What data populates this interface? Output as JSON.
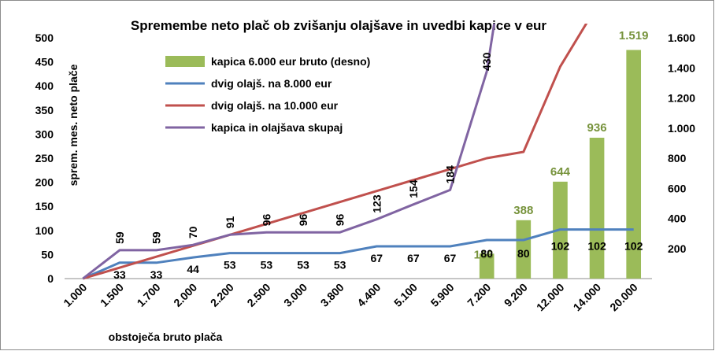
{
  "chart_data": {
    "type": "bar+line",
    "title": "Spremembe neto plač ob zvišanju olajšave in uvedbi kapice v eur",
    "xlabel": "obstoječa bruto plača",
    "ylabel": "sprem. mes. neto plače",
    "categories": [
      "1.000",
      "1.500",
      "1.700",
      "2.000",
      "2.200",
      "2.500",
      "3.000",
      "3.800",
      "4.400",
      "5.100",
      "5.900",
      "7.200",
      "9.200",
      "12.000",
      "14.000",
      "20.000"
    ],
    "y_left": {
      "min": 0,
      "max": 500,
      "ticks": [
        0,
        50,
        100,
        150,
        200,
        250,
        300,
        350,
        400,
        450,
        500
      ],
      "tick_labels": [
        "0",
        "50",
        "100",
        "150",
        "200",
        "250",
        "300",
        "350",
        "400",
        "450",
        "500"
      ]
    },
    "y_right": {
      "min": 0,
      "max": 1600,
      "ticks": [
        200,
        400,
        600,
        800,
        1000,
        1200,
        1400,
        1600
      ],
      "tick_labels": [
        "200",
        "400",
        "600",
        "800",
        "1.000",
        "1.200",
        "1.400",
        "1.600"
      ]
    },
    "grid": false,
    "legend_position": "top-left",
    "colors": {
      "bar": "#9BBB59",
      "line_blue": "#4F81BD",
      "line_red": "#C0504D",
      "line_purple": "#8064A2",
      "bar_label": "#77933C"
    },
    "series": [
      {
        "name": "kapica 6.000 eur bruto (desno)",
        "kind": "bar",
        "axis": "right",
        "values": [
          null,
          null,
          null,
          null,
          null,
          null,
          null,
          null,
          null,
          null,
          null,
          166,
          388,
          644,
          936,
          1519
        ],
        "labels": [
          "",
          "",
          "",
          "",
          "",
          "",
          "",
          "",
          "",
          "",
          "",
          "166",
          "388",
          "644",
          "936",
          "1.519"
        ]
      },
      {
        "name": "dvig olajš. na 8.000 eur",
        "kind": "line",
        "axis": "left",
        "values": [
          0,
          33,
          33,
          44,
          53,
          53,
          53,
          53,
          67,
          67,
          67,
          80,
          80,
          102,
          102,
          102
        ],
        "labels": [
          "",
          "33",
          "33",
          "44",
          "53",
          "53",
          "53",
          "53",
          "67",
          "67",
          "67",
          "80",
          "80",
          "102",
          "102",
          "102"
        ]
      },
      {
        "name": "dvig olajš. na 10.000 eur",
        "kind": "line",
        "axis": "left",
        "values": [
          0,
          null,
          null,
          null,
          null,
          null,
          null,
          null,
          null,
          null,
          null,
          250,
          263,
          440,
          null,
          null
        ],
        "labels": []
      },
      {
        "name": "kapica in olajšava skupaj",
        "kind": "line",
        "axis": "left",
        "values": [
          0,
          59,
          59,
          70,
          91,
          96,
          96,
          96,
          123,
          154,
          184,
          430,
          null,
          null,
          null,
          null
        ],
        "labels": [
          "",
          "59",
          "59",
          "70",
          "91",
          "96",
          "96",
          "96",
          "123",
          "154",
          "184",
          "430",
          "",
          "",
          "",
          ""
        ]
      }
    ]
  }
}
